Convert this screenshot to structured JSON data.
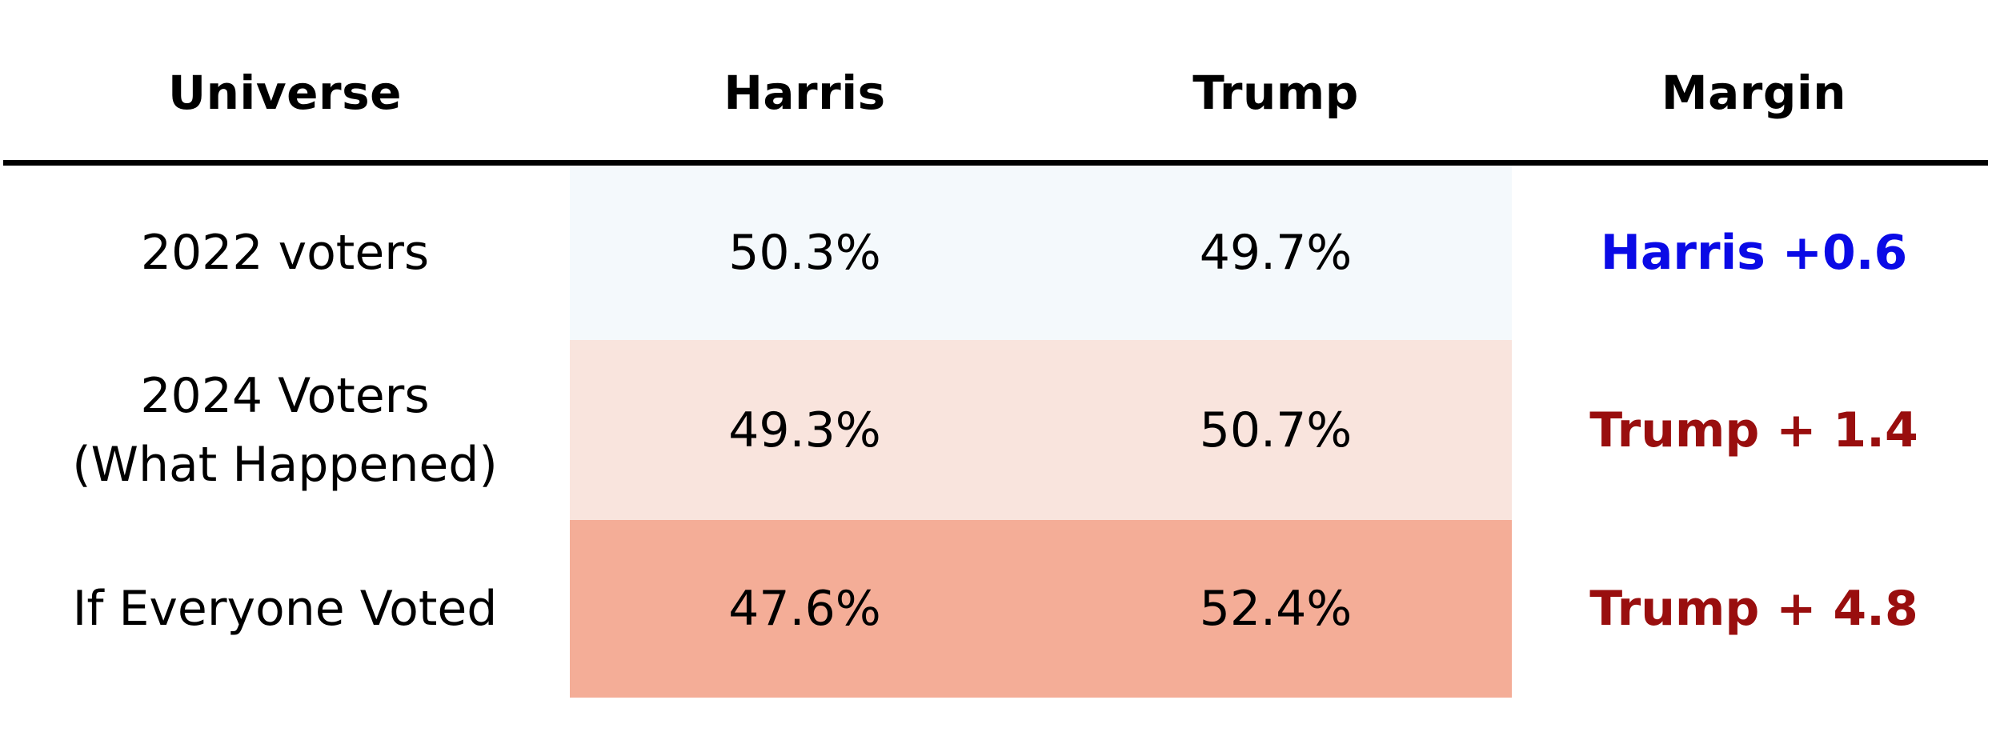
{
  "chart_data": {
    "type": "table",
    "columns": [
      "Universe",
      "Harris",
      "Trump",
      "Margin"
    ],
    "rows": [
      {
        "universe": "2022 voters",
        "harris": "50.3%",
        "trump": "49.7%",
        "margin": "Harris +0.6",
        "margin_color": "#0a0ae6",
        "shade_color": "#f4f9fc"
      },
      {
        "universe": "2024 Voters\n(What Happened)",
        "harris": "49.3%",
        "trump": "50.7%",
        "margin": "Trump + 1.4",
        "margin_color": "#990e0e",
        "shade_color": "#f9e4dd"
      },
      {
        "universe": "If Everyone Voted",
        "harris": "47.6%",
        "trump": "52.4%",
        "margin": "Trump + 4.8",
        "margin_color": "#990e0e",
        "shade_color": "#f4ad97"
      }
    ]
  }
}
